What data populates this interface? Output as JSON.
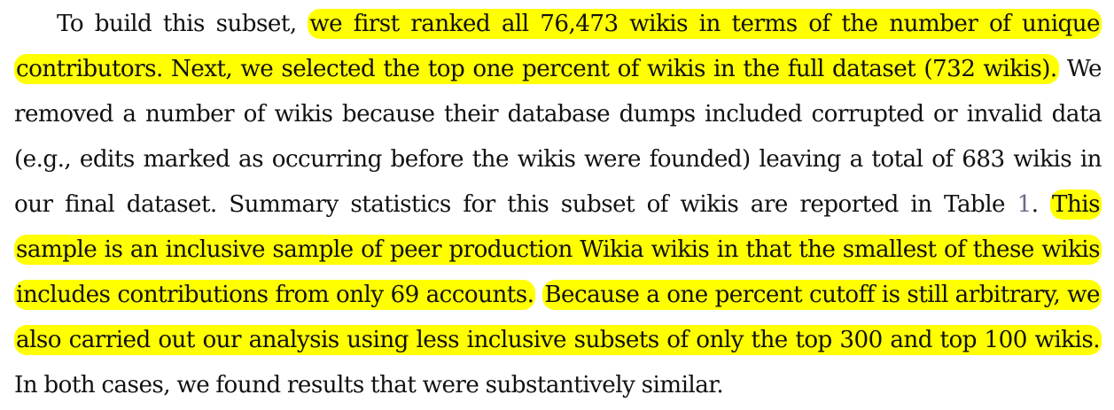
{
  "paragraph": {
    "s1": "To build this subset, ",
    "h1": "we first ranked all 76,473 wikis in terms of the number of unique contributors. Next, we selected the top one percent of wikis in the full dataset (732 wikis).",
    "s2": " We removed a number of wikis because their database dumps included corrupted or invalid data (e.g., edits marked as occurring before the wikis were founded) leaving a total of 683 wikis in our final dataset. Summary statistics for this subset of wikis are reported in Table ",
    "table_ref": "1",
    "s3": ". ",
    "h2": "This sample is an inclusive sample of peer production Wikia wikis in that the smallest of these wikis includes contributions from only 69 accounts.",
    "s4": " ",
    "h3": "Because a one percent cutoff is still arbitrary, we also carried out our analysis using less inclusive subsets of only the top 300 and top 100 wikis.",
    "s5": " In both cases, we found results that were substantively similar."
  },
  "colors": {
    "highlight": "#ffff00",
    "text": "#111111",
    "reference_link": "#6b6b8a"
  }
}
